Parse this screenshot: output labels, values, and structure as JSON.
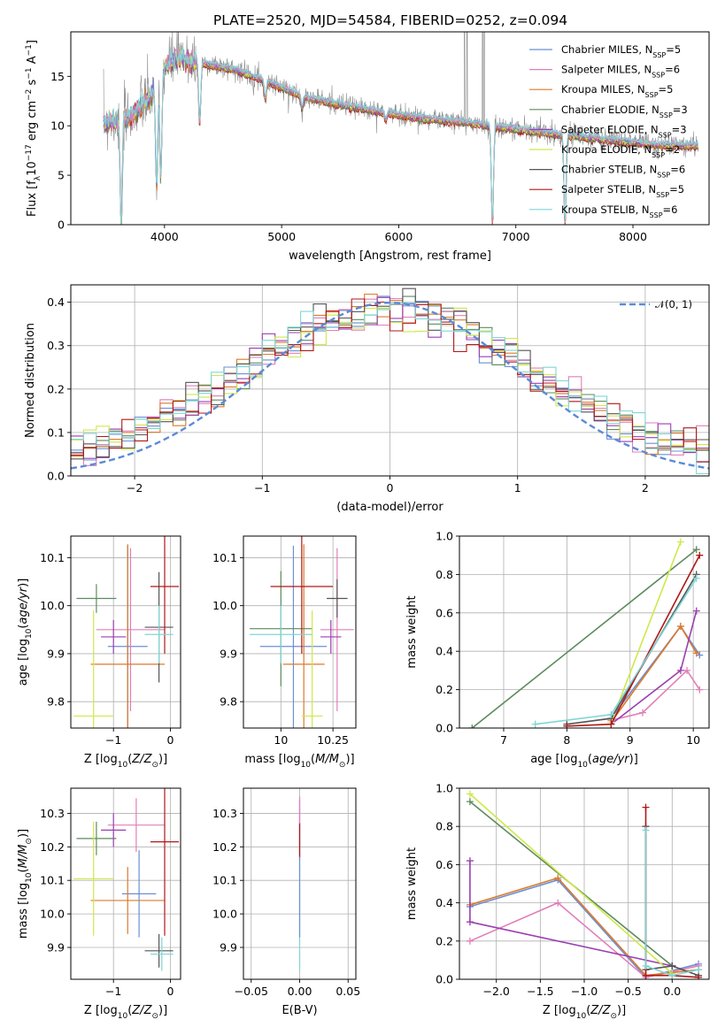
{
  "figure_title": "PLATE=2520, MJD=54584, FIBERID=0252, z=0.094",
  "colors": {
    "Chabrier MILES": "#6b8fd4",
    "Salpeter MILES": "#e27fb8",
    "Kroupa MILES": "#dc7a2b",
    "Chabrier ELODIE": "#5d8b5d",
    "Salpeter ELODIE": "#9a3fb0",
    "Kroupa ELODIE": "#cfe84a",
    "Chabrier STELIB": "#555555",
    "Salpeter STELIB": "#b01818",
    "Kroupa STELIB": "#7fd6d6",
    "data": "#8c8c8c",
    "normal": "#5b8bd6"
  },
  "chart_data": [
    {
      "id": "spectrum",
      "type": "line",
      "title": "PLATE=2520, MJD=54584, FIBERID=0252, z=0.094",
      "xlabel": "wavelength [Angstrom, rest frame]",
      "ylabel": "Flux [f_λ 10^-17 erg cm^-2 s^-1 A^-1]",
      "xlim": [
        3200,
        8650
      ],
      "ylim": [
        0,
        19.5
      ],
      "xticks": [
        4000,
        5000,
        6000,
        7000,
        8000
      ],
      "yticks": [
        0,
        5,
        10,
        15
      ],
      "grid": false,
      "legend_position": "top-right",
      "legend": [
        {
          "name": "Chabrier MILES",
          "nssp": "5"
        },
        {
          "name": "Salpeter MILES",
          "nssp": "6"
        },
        {
          "name": "Kroupa MILES",
          "nssp": "5"
        },
        {
          "name": "Chabrier ELODIE",
          "nssp": "3"
        },
        {
          "name": "Salpeter ELODIE",
          "nssp": "3"
        },
        {
          "name": "Kroupa ELODIE",
          "nssp": "2"
        },
        {
          "name": "Chabrier STELIB",
          "nssp": "6"
        },
        {
          "name": "Salpeter STELIB",
          "nssp": "5"
        },
        {
          "name": "Kroupa STELIB",
          "nssp": "6"
        }
      ],
      "continuum": [
        [
          3480,
          10.3
        ],
        [
          3700,
          10.8
        ],
        [
          3900,
          13.2
        ],
        [
          4000,
          16.0
        ],
        [
          4100,
          16.8
        ],
        [
          4300,
          16.4
        ],
        [
          4600,
          15.7
        ],
        [
          4900,
          14.4
        ],
        [
          5200,
          12.9
        ],
        [
          5500,
          12.2
        ],
        [
          5800,
          11.5
        ],
        [
          6200,
          10.8
        ],
        [
          6600,
          10.3
        ],
        [
          7000,
          9.7
        ],
        [
          7400,
          9.1
        ],
        [
          7800,
          8.6
        ],
        [
          8200,
          8.1
        ],
        [
          8550,
          8.0
        ]
      ],
      "absorption_lines": [
        [
          3630,
          0
        ],
        [
          3933,
          3.6
        ],
        [
          3968,
          4.6
        ],
        [
          4300,
          10.3
        ],
        [
          4861,
          12.8
        ],
        [
          5175,
          11.8
        ],
        [
          5890,
          10.6
        ],
        [
          6800,
          0
        ],
        [
          7420,
          0
        ]
      ],
      "emission_spikes": [
        [
          6563,
          19.5
        ],
        [
          6583,
          19.5
        ],
        [
          6716,
          19.5
        ],
        [
          6731,
          19.5
        ]
      ]
    },
    {
      "id": "residuals",
      "type": "histogram",
      "xlabel": "(data-model)/error",
      "ylabel": "Normed distribution",
      "xlim": [
        -2.5,
        2.5
      ],
      "ylim": [
        0,
        0.44
      ],
      "xticks": [
        -2,
        -1,
        0,
        1,
        2
      ],
      "yticks": [
        0.0,
        0.1,
        0.2,
        0.3,
        0.4
      ],
      "grid": true,
      "legend_position": "top-right",
      "legend": [
        "𝒩(0, 1)"
      ],
      "bins": 50
    },
    {
      "id": "age_vs_z",
      "type": "errorbar",
      "xlabel": "Z [log10(Z/Z⊙)]",
      "ylabel": "age [log10(age/yr)]",
      "xlim": [
        -1.75,
        0.18
      ],
      "ylim": [
        9.745,
        10.145
      ],
      "xticks": [
        -1,
        0
      ],
      "yticks": [
        9.8,
        9.9,
        10.0,
        10.1
      ],
      "grid": true,
      "points": [
        {
          "model": "Chabrier MILES",
          "x": -0.75,
          "xerr": 0.35,
          "y": 9.915,
          "yerr": 0.21
        },
        {
          "model": "Salpeter MILES",
          "x": -0.7,
          "xerr": 0.6,
          "y": 9.95,
          "yerr": 0.17
        },
        {
          "model": "Kroupa MILES",
          "x": -0.75,
          "xerr": 0.65,
          "y": 9.878,
          "yerr": 0.25
        },
        {
          "model": "Chabrier ELODIE",
          "x": -1.3,
          "xerr": 0.35,
          "y": 10.015,
          "yerr": 0.03
        },
        {
          "model": "Salpeter ELODIE",
          "x": -1.0,
          "xerr": 0.22,
          "y": 9.935,
          "yerr": 0.035
        },
        {
          "model": "Kroupa ELODIE",
          "x": -1.35,
          "xerr": 0.35,
          "y": 9.77,
          "yerr": 0.22
        },
        {
          "model": "Chabrier STELIB",
          "x": -0.2,
          "xerr": 0.25,
          "y": 9.955,
          "yerr": 0.115
        },
        {
          "model": "Salpeter STELIB",
          "x": -0.1,
          "xerr": 0.25,
          "y": 10.04,
          "yerr": 0.14
        },
        {
          "model": "Kroupa STELIB",
          "x": -0.2,
          "xerr": 0.25,
          "y": 9.94,
          "yerr": 0.06
        }
      ]
    },
    {
      "id": "age_vs_mass",
      "type": "errorbar",
      "xlabel": "mass [log10(M/M⊙)]",
      "ylabel": "",
      "xlim": [
        9.82,
        10.36
      ],
      "ylim": [
        9.745,
        10.145
      ],
      "xticks": [
        10.0,
        10.25
      ],
      "yticks": [
        9.8,
        9.9,
        10.0,
        10.1
      ],
      "grid": true,
      "points": [
        {
          "model": "Chabrier MILES",
          "x": 10.06,
          "xerr": 0.16,
          "y": 9.915,
          "yerr": 0.21
        },
        {
          "model": "Salpeter MILES",
          "x": 10.27,
          "xerr": 0.08,
          "y": 9.95,
          "yerr": 0.17
        },
        {
          "model": "Kroupa MILES",
          "x": 10.11,
          "xerr": 0.1,
          "y": 9.878,
          "yerr": 0.25
        },
        {
          "model": "Chabrier ELODIE",
          "x": 10.0,
          "xerr": 0.15,
          "y": 9.952,
          "yerr": 0.12
        },
        {
          "model": "Salpeter ELODIE",
          "x": 10.24,
          "xerr": 0.05,
          "y": 9.935,
          "yerr": 0.035
        },
        {
          "model": "Kroupa ELODIE",
          "x": 10.15,
          "xerr": 0.05,
          "y": 9.77,
          "yerr": 0.22
        },
        {
          "model": "Chabrier STELIB",
          "x": 10.27,
          "xerr": 0.05,
          "y": 10.015,
          "yerr": 0.04
        },
        {
          "model": "Salpeter STELIB",
          "x": 10.1,
          "xerr": 0.15,
          "y": 10.04,
          "yerr": 0.14
        },
        {
          "model": "Kroupa STELIB",
          "x": 10.0,
          "xerr": 0.15,
          "y": 9.94,
          "yerr": 0.06
        }
      ]
    },
    {
      "id": "weight_vs_age",
      "type": "line",
      "xlabel": "age [log10(age/yr)]",
      "ylabel": "mass weight",
      "xlim": [
        6.3,
        10.25
      ],
      "ylim": [
        0,
        1.0
      ],
      "xticks": [
        7,
        8,
        9,
        10
      ],
      "yticks": [
        0.0,
        0.2,
        0.4,
        0.6,
        0.8,
        1.0
      ],
      "grid": true,
      "series": [
        {
          "model": "Chabrier MILES",
          "x": [
            8.7,
            9.8,
            10.1
          ],
          "y": [
            0.05,
            0.53,
            0.38
          ]
        },
        {
          "model": "Salpeter MILES",
          "x": [
            8.7,
            9.2,
            9.9,
            10.1
          ],
          "y": [
            0.04,
            0.08,
            0.3,
            0.2
          ]
        },
        {
          "model": "Kroupa MILES",
          "x": [
            8.7,
            9.8,
            10.05
          ],
          "y": [
            0.03,
            0.53,
            0.39
          ]
        },
        {
          "model": "Chabrier ELODIE",
          "x": [
            6.5,
            10.05
          ],
          "y": [
            0.0,
            0.93
          ]
        },
        {
          "model": "Salpeter ELODIE",
          "x": [
            8.7,
            9.8,
            10.05
          ],
          "y": [
            0.02,
            0.3,
            0.61
          ]
        },
        {
          "model": "Kroupa ELODIE",
          "x": [
            8.7,
            9.8
          ],
          "y": [
            0.03,
            0.97
          ]
        },
        {
          "model": "Chabrier STELIB",
          "x": [
            8.0,
            8.7,
            10.05
          ],
          "y": [
            0.02,
            0.05,
            0.8
          ]
        },
        {
          "model": "Salpeter STELIB",
          "x": [
            8.0,
            8.7,
            10.1
          ],
          "y": [
            0.01,
            0.02,
            0.9
          ]
        },
        {
          "model": "Kroupa STELIB",
          "x": [
            7.5,
            8.7,
            10.05
          ],
          "y": [
            0.02,
            0.07,
            0.78
          ]
        }
      ]
    },
    {
      "id": "mass_vs_z",
      "type": "errorbar",
      "xlabel": "Z [log10(Z/Z⊙)]",
      "ylabel": "mass [log10(M/M⊙)]",
      "xlim": [
        -1.75,
        0.18
      ],
      "ylim": [
        9.805,
        10.375
      ],
      "xticks": [
        -1,
        0
      ],
      "yticks": [
        9.9,
        10.0,
        10.1,
        10.2,
        10.3
      ],
      "grid": true,
      "points": [
        {
          "model": "Chabrier MILES",
          "x": -0.55,
          "xerr": 0.3,
          "y": 10.06,
          "yerr": 0.13
        },
        {
          "model": "Salpeter MILES",
          "x": -0.6,
          "xerr": 0.5,
          "y": 10.265,
          "yerr": 0.08
        },
        {
          "model": "Kroupa MILES",
          "x": -0.75,
          "xerr": 0.65,
          "y": 10.04,
          "yerr": 0.1
        },
        {
          "model": "Chabrier ELODIE",
          "x": -1.3,
          "xerr": 0.35,
          "y": 10.225,
          "yerr": 0.05
        },
        {
          "model": "Salpeter ELODIE",
          "x": -1.0,
          "xerr": 0.22,
          "y": 10.25,
          "yerr": 0.05
        },
        {
          "model": "Kroupa ELODIE",
          "x": -1.35,
          "xerr": 0.35,
          "y": 10.105,
          "yerr": 0.17
        },
        {
          "model": "Chabrier STELIB",
          "x": -0.2,
          "xerr": 0.25,
          "y": 9.89,
          "yerr": 0.05
        },
        {
          "model": "Salpeter STELIB",
          "x": -0.1,
          "xerr": 0.25,
          "y": 10.215,
          "yerr": 0.28
        },
        {
          "model": "Kroupa STELIB",
          "x": -0.15,
          "xerr": 0.2,
          "y": 9.88,
          "yerr": 0.05
        }
      ]
    },
    {
      "id": "mass_vs_ebv",
      "type": "errorbar",
      "xlabel": "E(B-V)",
      "ylabel": "",
      "xlim": [
        -0.058,
        0.058
      ],
      "ylim": [
        9.805,
        10.375
      ],
      "xticks": [
        -0.05,
        0.0,
        0.05
      ],
      "tick_labels": [
        "−0.05",
        "0.00",
        "0.05"
      ],
      "yticks": [
        9.9,
        10.0,
        10.1,
        10.2,
        10.3
      ],
      "grid": true,
      "points": [
        {
          "model": "Salpeter ELODIE",
          "x": 0.0,
          "xerr": 0,
          "y": 10.25,
          "yerr": 0.09
        },
        {
          "model": "Salpeter MILES",
          "x": 0.0,
          "xerr": 0,
          "y": 10.26,
          "yerr": 0.09
        },
        {
          "model": "Kroupa STELIB",
          "x": 0.0,
          "xerr": 0,
          "y": 10.03,
          "yerr": 0.2
        },
        {
          "model": "Chabrier MILES",
          "x": 0.0,
          "xerr": 0,
          "y": 10.05,
          "yerr": 0.12
        },
        {
          "model": "Salpeter STELIB",
          "x": 0.0,
          "xerr": 0,
          "y": 10.22,
          "yerr": 0.05
        }
      ]
    },
    {
      "id": "weight_vs_z",
      "type": "line",
      "xlabel": "Z [log10(Z/Z⊙)]",
      "ylabel": "mass weight",
      "xlim": [
        -2.42,
        0.42
      ],
      "ylim": [
        0,
        1.0
      ],
      "xticks": [
        -2.0,
        -1.5,
        -1.0,
        -0.5,
        0.0
      ],
      "tick_labels": [
        "−2.0",
        "−1.5",
        "−1.0",
        "−0.5",
        "0.0"
      ],
      "yticks": [
        0.0,
        0.2,
        0.4,
        0.6,
        0.8,
        1.0
      ],
      "grid": true,
      "series": [
        {
          "model": "Chabrier MILES",
          "x": [
            -2.3,
            -1.3,
            -0.3,
            0.3
          ],
          "y": [
            0.38,
            0.52,
            0.01,
            0.08
          ]
        },
        {
          "model": "Salpeter MILES",
          "x": [
            -2.3,
            -1.3,
            -0.3,
            0.3
          ],
          "y": [
            0.2,
            0.4,
            0.01,
            0.07
          ]
        },
        {
          "model": "Kroupa MILES",
          "x": [
            -2.3,
            -1.3,
            -0.3,
            0.3
          ],
          "y": [
            0.39,
            0.53,
            0.02,
            0.05
          ]
        },
        {
          "model": "Chabrier ELODIE",
          "x": [
            -2.3,
            0.0
          ],
          "y": [
            0.93,
            0.07
          ]
        },
        {
          "model": "Salpeter ELODIE",
          "x": [
            -2.3,
            -2.3,
            0.0
          ],
          "y": [
            0.62,
            0.3,
            0.07
          ]
        },
        {
          "model": "Kroupa ELODIE",
          "x": [
            -2.3,
            0.0
          ],
          "y": [
            0.97,
            0.03
          ]
        },
        {
          "model": "Chabrier STELIB",
          "x": [
            -0.3,
            -0.3,
            0.0,
            0.3
          ],
          "y": [
            0.8,
            0.05,
            0.07,
            0.02
          ]
        },
        {
          "model": "Salpeter STELIB",
          "x": [
            -0.3,
            -0.3,
            0.0,
            0.3
          ],
          "y": [
            0.9,
            0.02,
            0.02,
            0.01
          ]
        },
        {
          "model": "Kroupa STELIB",
          "x": [
            -0.3,
            -0.3,
            0.0,
            0.3
          ],
          "y": [
            0.78,
            0.07,
            0.02,
            0.05
          ]
        }
      ]
    }
  ]
}
